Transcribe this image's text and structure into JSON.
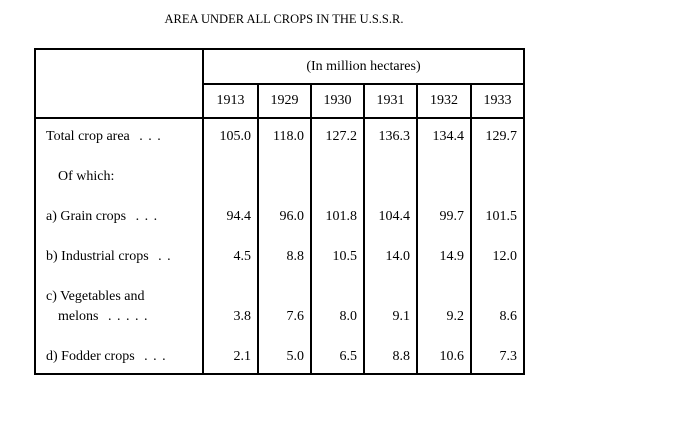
{
  "title": "AREA UNDER ALL CROPS IN THE U.S.S.R.",
  "unit": "(In million hectares)",
  "years": [
    "1913",
    "1929",
    "1930",
    "1931",
    "1932",
    "1933"
  ],
  "rows": [
    {
      "label": "Total crop area",
      "leader": ". . .",
      "values": [
        "105.0",
        "118.0",
        "127.2",
        "136.3",
        "134.4",
        "129.7"
      ]
    },
    {
      "label": "Of which:"
    },
    {
      "label": "a) Grain crops",
      "leader": ". . .",
      "values": [
        "94.4",
        "96.0",
        "101.8",
        "104.4",
        "99.7",
        "101.5"
      ]
    },
    {
      "label": "b) Industrial crops",
      "leader": ". .",
      "values": [
        "4.5",
        "8.8",
        "10.5",
        "14.0",
        "14.9",
        "12.0"
      ]
    },
    {
      "label": "c) Vegetables and",
      "label_cont": "melons",
      "leader": ". . . . .",
      "values": [
        "3.8",
        "7.6",
        "8.0",
        "9.1",
        "9.2",
        "8.6"
      ]
    },
    {
      "label": "d) Fodder crops",
      "leader": ". . .",
      "values": [
        "2.1",
        "5.0",
        "6.5",
        "8.8",
        "10.6",
        "7.3"
      ]
    }
  ]
}
